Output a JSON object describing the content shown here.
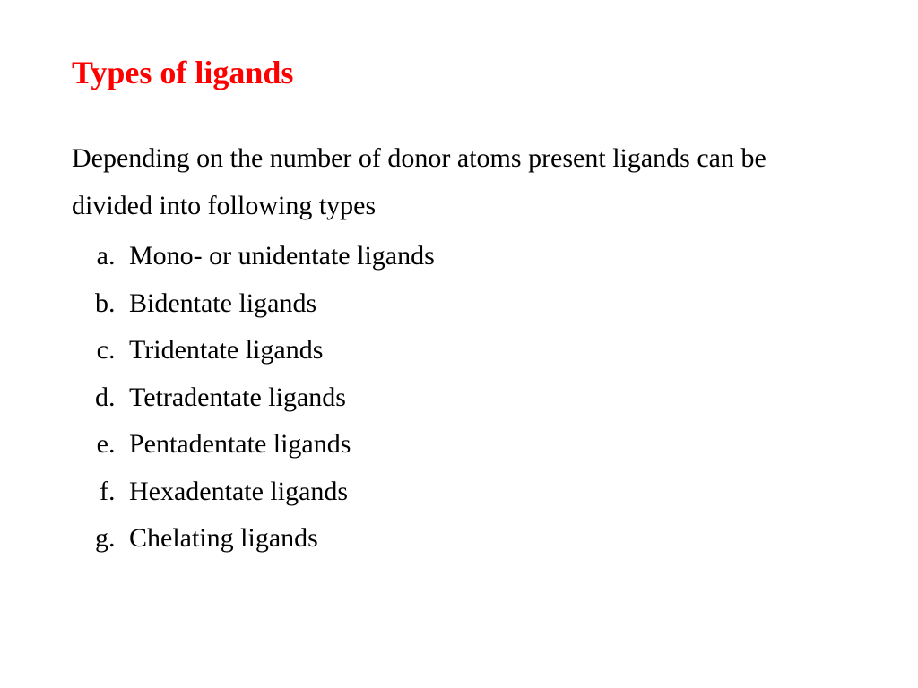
{
  "title": {
    "text": "Types of ligands",
    "color": "#ff0000",
    "font_size_pt": 27,
    "font_weight": "bold"
  },
  "body": {
    "intro_text": "Depending on the number of donor atoms present ligands can be divided into following types",
    "text_color": "#000000",
    "font_size_pt": 22,
    "list_style": "lower-alpha",
    "items": [
      "Mono- or unidentate ligands",
      "Bidentate ligands",
      "Tridentate ligands",
      "Tetradentate ligands",
      "Pentadentate ligands",
      "Hexadentate ligands",
      "Chelating ligands"
    ]
  },
  "background_color": "#ffffff",
  "font_family": "Times New Roman"
}
